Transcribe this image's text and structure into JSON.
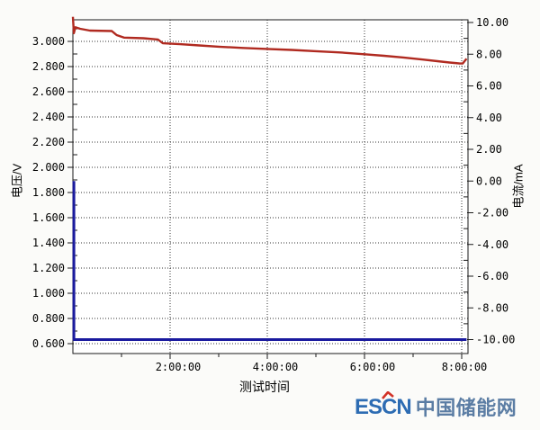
{
  "watermark": {
    "prefix": "ES",
    "accent_letter": "C",
    "suffix": "N",
    "brand_name": "中国储能网",
    "acronym_color": "#2d6cb3",
    "brand_color": "#5b7da4",
    "accent_color": "#d23227"
  },
  "chart_data": {
    "type": "line",
    "title": "",
    "xlabel": "测试时间",
    "grid": {
      "style": "dotted",
      "color": "#333333",
      "horizontal": "left-axis-ticks",
      "vertical": "x-major-ticks"
    },
    "x_axis": {
      "unit": "h:mm:ss",
      "min_hours": 0,
      "max_hours": 8.13,
      "major_tick_hours": [
        2,
        4,
        6,
        8
      ],
      "tick_labels": [
        "2:00:00",
        "4:00:00",
        "6:00:00",
        "8:00:00"
      ],
      "minor_tick_hours": [
        1,
        3,
        5,
        7
      ],
      "gridline_hours": [
        2,
        4,
        6,
        8
      ]
    },
    "left_axis": {
      "label": "电压/V",
      "min": 0.52,
      "max": 3.17,
      "tick_values": [
        3.0,
        2.8,
        2.6,
        2.4,
        2.2,
        2.0,
        1.8,
        1.6,
        1.4,
        1.2,
        1.0,
        0.8,
        0.6
      ],
      "tick_labels": [
        "3.000",
        "2.800",
        "2.600",
        "2.400",
        "2.200",
        "2.000",
        "1.800",
        "1.600",
        "1.400",
        "1.200",
        "1.000",
        "0.800",
        "0.600"
      ],
      "minor_tick_values": [
        3.1,
        2.9,
        2.7,
        2.5,
        2.3,
        2.1,
        1.9,
        1.7,
        1.5,
        1.3,
        1.1,
        0.9,
        0.7
      ]
    },
    "right_axis": {
      "label": "电流/mA",
      "min": -10.9,
      "max": 10.2,
      "tick_values": [
        10,
        8,
        6,
        4,
        2,
        0,
        -2,
        -4,
        -6,
        -8,
        -10
      ],
      "tick_labels": [
        "10.00",
        "8.00",
        "6.00",
        "4.00",
        "2.00",
        "0.00",
        "-2.00",
        "-4.00",
        "-6.00",
        "-8.00",
        "-10.00"
      ],
      "minor_tick_values": [
        9,
        7,
        5,
        3,
        1,
        -1,
        -3,
        -5,
        -7,
        -9
      ]
    },
    "series": [
      {
        "name": "current",
        "axis": "right",
        "unit": "mA",
        "color": "#1a1a9e",
        "width": 3,
        "points": [
          [
            0.02,
            0.0
          ],
          [
            0.02,
            -10.0
          ],
          [
            8.1,
            -10.0
          ]
        ]
      },
      {
        "name": "voltage",
        "axis": "left",
        "unit": "V",
        "color": "#b02a20",
        "width": 2.4,
        "points": [
          [
            0.0,
            3.195
          ],
          [
            0.02,
            3.065
          ],
          [
            0.05,
            3.112
          ],
          [
            0.15,
            3.1
          ],
          [
            0.35,
            3.086
          ],
          [
            0.8,
            3.082
          ],
          [
            0.9,
            3.05
          ],
          [
            1.05,
            3.03
          ],
          [
            1.45,
            3.025
          ],
          [
            1.75,
            3.015
          ],
          [
            1.85,
            2.985
          ],
          [
            2.2,
            2.978
          ],
          [
            2.6,
            2.968
          ],
          [
            3.0,
            2.958
          ],
          [
            3.5,
            2.948
          ],
          [
            4.0,
            2.94
          ],
          [
            4.5,
            2.932
          ],
          [
            5.0,
            2.922
          ],
          [
            5.5,
            2.912
          ],
          [
            6.0,
            2.898
          ],
          [
            6.4,
            2.886
          ],
          [
            6.8,
            2.872
          ],
          [
            7.2,
            2.856
          ],
          [
            7.5,
            2.843
          ],
          [
            7.75,
            2.832
          ],
          [
            7.95,
            2.825
          ],
          [
            8.02,
            2.824
          ],
          [
            8.1,
            2.863
          ]
        ]
      }
    ]
  }
}
